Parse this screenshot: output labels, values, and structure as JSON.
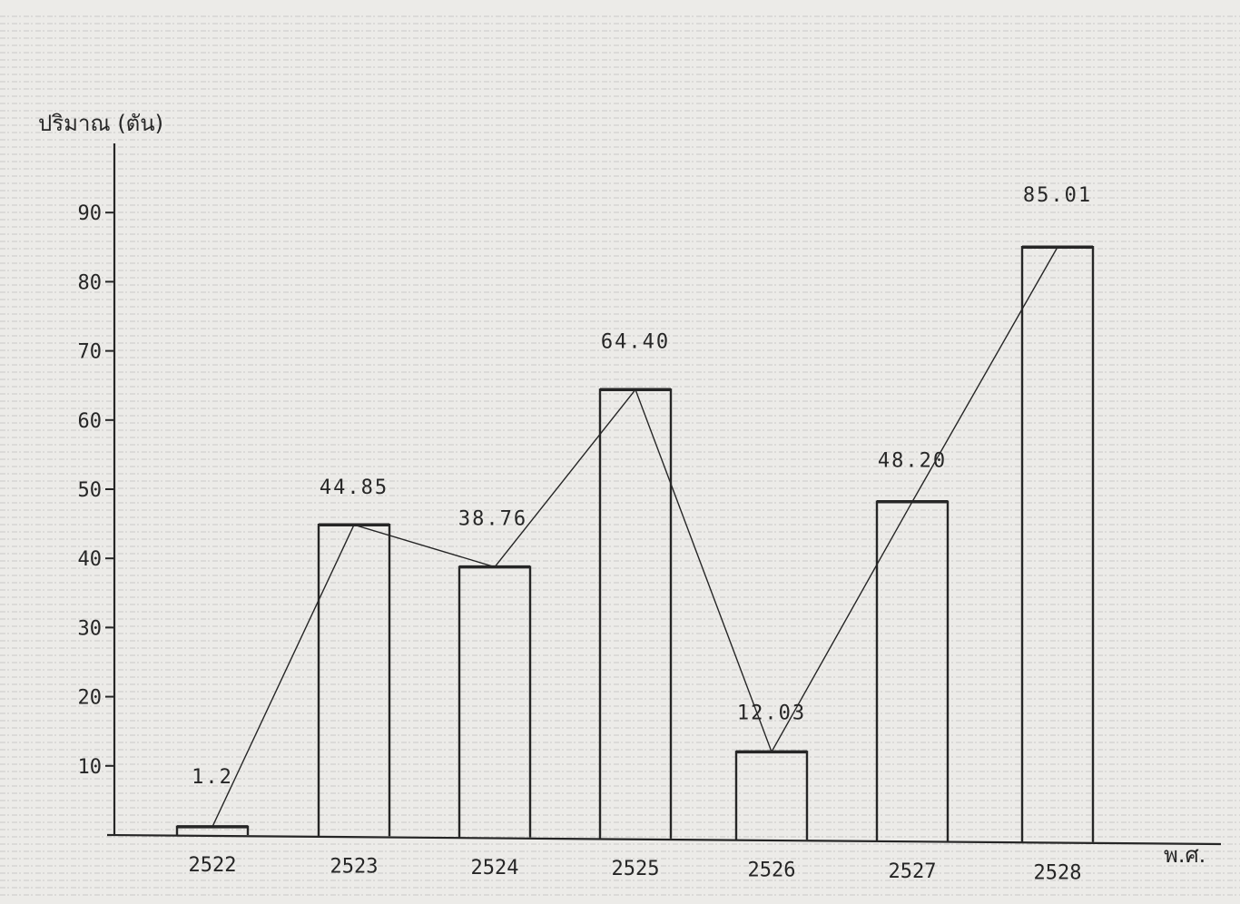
{
  "chart_data": {
    "type": "bar",
    "ylabel": "ปริมาณ (ตัน)",
    "xlabel": "พ.ศ.",
    "categories": [
      "2522",
      "2523",
      "2524",
      "2525",
      "2526",
      "2527",
      "2528"
    ],
    "values": [
      1.2,
      44.85,
      38.76,
      64.4,
      12.03,
      48.2,
      85.01
    ],
    "data_labels": [
      "1.2",
      "44.85",
      "38.76",
      "64.40",
      "12.03",
      "48.20",
      "85.01"
    ],
    "overlay": "line",
    "ylim": [
      0,
      90
    ],
    "yticks": [
      10,
      20,
      30,
      40,
      50,
      60,
      70,
      80,
      90
    ],
    "grid": true,
    "colors": {
      "ink": "#262626",
      "paper": "#ecebe8"
    }
  }
}
